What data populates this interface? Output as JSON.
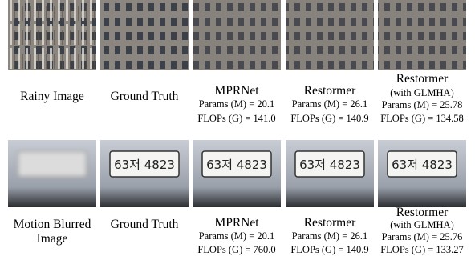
{
  "figure": {
    "rows": [
      {
        "cells": [
          {
            "title": [
              "Rainy Image"
            ]
          },
          {
            "title": [
              "Ground Truth"
            ]
          },
          {
            "title": [
              "MPRNet"
            ],
            "metrics": [
              "Params (M) = 20.1",
              "FLOPs (G) = 141.0"
            ]
          },
          {
            "title": [
              "Restormer"
            ],
            "metrics": [
              "Params (M) = 26.1",
              "FLOPs (G) = 140.9"
            ]
          },
          {
            "title": [
              "Restormer"
            ],
            "note": "(with GLMHA)",
            "metrics": [
              "Params (M) = 25.78",
              "FLOPs (G) = 134.58"
            ]
          }
        ]
      },
      {
        "cells": [
          {
            "title": [
              "Motion Blurred",
              "Image"
            ]
          },
          {
            "title": [
              "Ground Truth"
            ],
            "plate": "63저 4823"
          },
          {
            "title": [
              "MPRNet"
            ],
            "plate": "63저 4823",
            "metrics": [
              "Params (M) = 20.1",
              "FLOPs (G) = 760.0"
            ]
          },
          {
            "title": [
              "Restormer"
            ],
            "plate": "63저 4823",
            "metrics": [
              "Params (M) = 26.1",
              "FLOPs (G) = 140.9"
            ]
          },
          {
            "title": [
              "Restormer"
            ],
            "note": "(with GLMHA)",
            "plate": "63저 4823",
            "metrics": [
              "Params (M) = 25.76",
              "FLOPs (G) = 133.27"
            ]
          }
        ]
      }
    ]
  }
}
